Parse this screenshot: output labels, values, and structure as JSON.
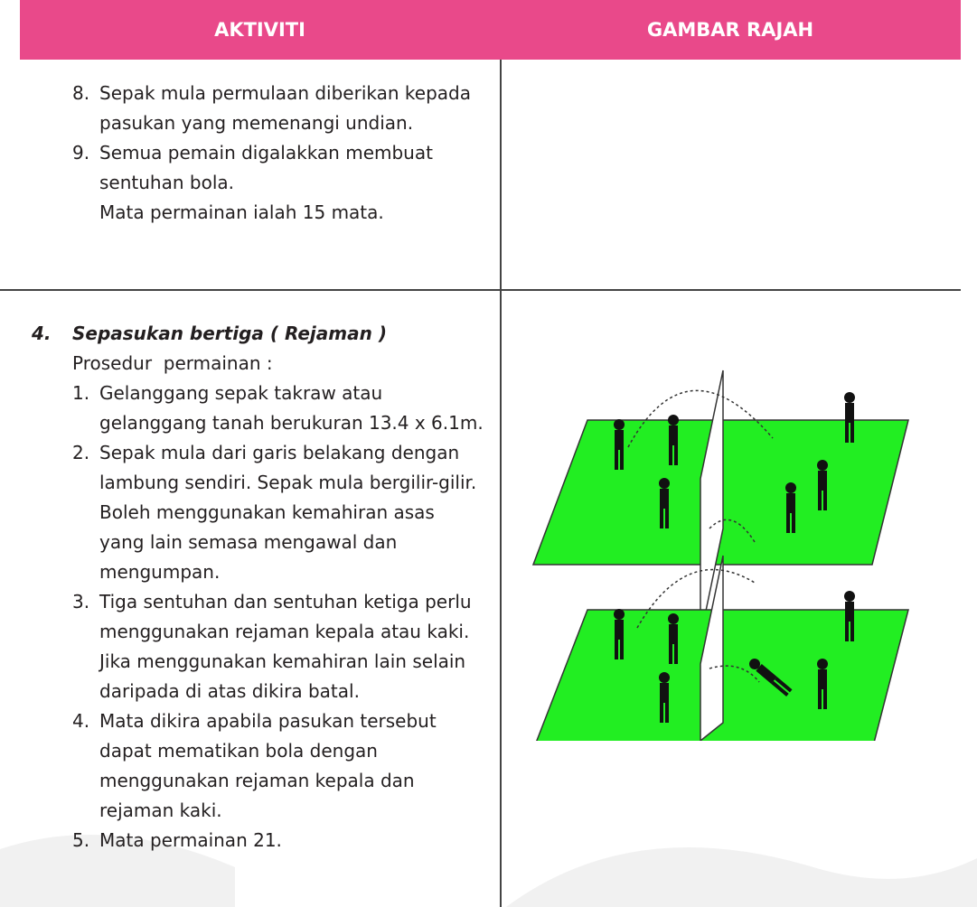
{
  "header": {
    "columns": [
      "AKTIVITI",
      "GAMBAR RAJAH"
    ]
  },
  "rows": [
    {
      "items": [
        {
          "number": "8.",
          "text": "Sepak mula permulaan diberikan kepada pasukan yang memenangi undian."
        },
        {
          "number": "9.",
          "text": "Semua pemain digalakkan membuat sentuhan bola."
        }
      ],
      "note": "Mata permainan ialah 15 mata."
    },
    {
      "number": "4.",
      "title": "Sepasukan bertiga ( Rejaman )",
      "subtitle": "Prosedur  permainan :",
      "items": [
        {
          "number": "1.",
          "text": "Gelanggang sepak takraw atau gelanggang tanah berukuran 13.4 x 6.1m."
        },
        {
          "number": "2.",
          "text": "Sepak mula dari garis belakang dengan lambung sendiri.  Sepak mula bergilir-gilir.  Boleh menggunakan kemahiran asas yang lain semasa mengawal dan mengumpan."
        },
        {
          "number": "3.",
          "text": "Tiga sentuhan dan sentuhan ketiga perlu menggunakan rejaman kepala atau kaki.  Jika menggunakan kemahiran lain selain daripada di atas dikira batal."
        },
        {
          "number": "4.",
          "text": "Mata dikira apabila pasukan tersebut dapat mematikan bola dengan menggunakan rejaman kepala dan rejaman kaki."
        },
        {
          "number": "5.",
          "text": "Mata permainan 21."
        }
      ]
    }
  ]
}
